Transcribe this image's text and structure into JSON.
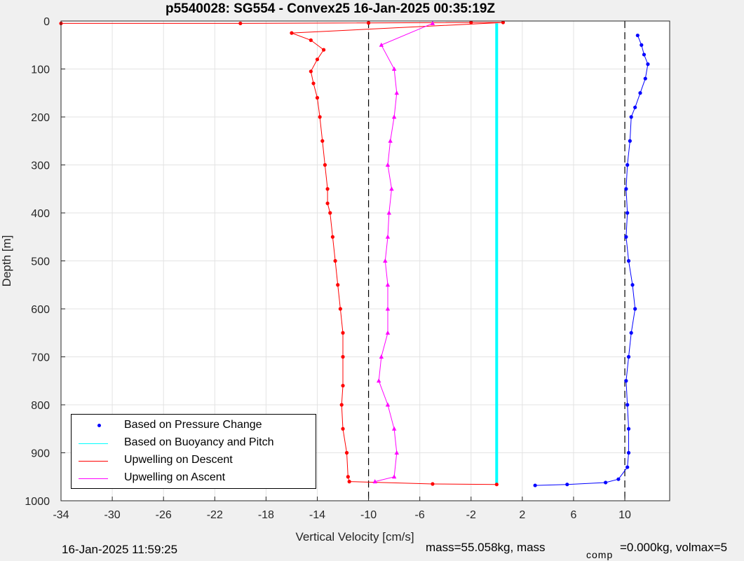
{
  "chart_data": {
    "type": "line",
    "title": "p5540028: SG554 - Convex25 16-Jan-2025 00:35:19Z",
    "xlabel": "Vertical Velocity [cm/s]",
    "ylabel": "Depth [m]",
    "xlim": [
      -34,
      13.5
    ],
    "ylim": [
      0,
      1000
    ],
    "y_reversed": true,
    "xticks": [
      -34,
      -30,
      -26,
      -22,
      -18,
      -14,
      -10,
      -6,
      -2,
      2,
      6,
      10
    ],
    "yticks": [
      0,
      100,
      200,
      300,
      400,
      500,
      600,
      700,
      800,
      900,
      1000
    ],
    "grid": true,
    "legend_position": "bottom-left",
    "reference_lines": [
      {
        "x": -10,
        "style": "dashed",
        "color": "#000000"
      },
      {
        "x": 10,
        "style": "dashed",
        "color": "#000000"
      }
    ],
    "series": [
      {
        "name": "Based on Pressure Change",
        "color": "#0000ff",
        "marker": "dot",
        "points": [
          [
            11,
            30
          ],
          [
            11.3,
            50
          ],
          [
            11.5,
            70
          ],
          [
            11.8,
            90
          ],
          [
            11.6,
            120
          ],
          [
            11.2,
            150
          ],
          [
            10.8,
            180
          ],
          [
            10.5,
            200
          ],
          [
            10.4,
            250
          ],
          [
            10.2,
            300
          ],
          [
            10.1,
            350
          ],
          [
            10.2,
            400
          ],
          [
            10.1,
            450
          ],
          [
            10.3,
            500
          ],
          [
            10.6,
            550
          ],
          [
            10.8,
            600
          ],
          [
            10.5,
            650
          ],
          [
            10.3,
            700
          ],
          [
            10.1,
            750
          ],
          [
            10.2,
            800
          ],
          [
            10.3,
            850
          ],
          [
            10.3,
            900
          ],
          [
            10.2,
            930
          ],
          [
            9.5,
            955
          ],
          [
            8.5,
            962
          ],
          [
            5.5,
            966
          ],
          [
            3,
            968
          ]
        ]
      },
      {
        "name": "Based on Buoyancy and Pitch",
        "color": "#00ffff",
        "marker": "line",
        "points": [
          [
            0,
            5
          ],
          [
            0,
            200
          ],
          [
            0,
            400
          ],
          [
            0,
            600
          ],
          [
            0,
            800
          ],
          [
            0,
            967
          ]
        ]
      },
      {
        "name": "Upwelling on Descent",
        "color": "#ff0000",
        "marker": "dot",
        "points": [
          [
            -34,
            5
          ],
          [
            -20,
            5
          ],
          [
            -10,
            4
          ],
          [
            -2,
            3
          ],
          [
            0.5,
            3
          ],
          [
            -16,
            25
          ],
          [
            -14.5,
            40
          ],
          [
            -13.5,
            60
          ],
          [
            -14,
            80
          ],
          [
            -14.5,
            105
          ],
          [
            -14.3,
            130
          ],
          [
            -14,
            160
          ],
          [
            -13.8,
            200
          ],
          [
            -13.6,
            250
          ],
          [
            -13.4,
            300
          ],
          [
            -13.2,
            350
          ],
          [
            -13.2,
            380
          ],
          [
            -13,
            400
          ],
          [
            -12.8,
            450
          ],
          [
            -12.6,
            500
          ],
          [
            -12.4,
            550
          ],
          [
            -12.2,
            600
          ],
          [
            -12,
            650
          ],
          [
            -12,
            700
          ],
          [
            -12,
            760
          ],
          [
            -12.1,
            800
          ],
          [
            -12,
            850
          ],
          [
            -11.7,
            900
          ],
          [
            -11.6,
            950
          ],
          [
            -11.5,
            960
          ],
          [
            -5,
            965
          ],
          [
            0,
            966
          ]
        ]
      },
      {
        "name": "Upwelling on Ascent",
        "color": "#ff00ff",
        "marker": "triangle",
        "points": [
          [
            -9.5,
            960
          ],
          [
            -8,
            950
          ],
          [
            -7.8,
            900
          ],
          [
            -8,
            850
          ],
          [
            -8.5,
            800
          ],
          [
            -9.2,
            750
          ],
          [
            -9,
            700
          ],
          [
            -8.5,
            650
          ],
          [
            -8.5,
            600
          ],
          [
            -8.5,
            550
          ],
          [
            -8.7,
            500
          ],
          [
            -8.5,
            450
          ],
          [
            -8.4,
            400
          ],
          [
            -8.2,
            350
          ],
          [
            -8.5,
            300
          ],
          [
            -8.3,
            250
          ],
          [
            -8,
            200
          ],
          [
            -7.8,
            150
          ],
          [
            -8,
            100
          ],
          [
            -9,
            50
          ],
          [
            -5,
            5
          ]
        ]
      }
    ]
  },
  "footer": {
    "timestamp": "16-Jan-2025 11:59:25",
    "mass_text": "mass=55.058kg, mass",
    "comp_sub": "comp",
    "comp_text": "=0.000kg, volmax=5"
  }
}
